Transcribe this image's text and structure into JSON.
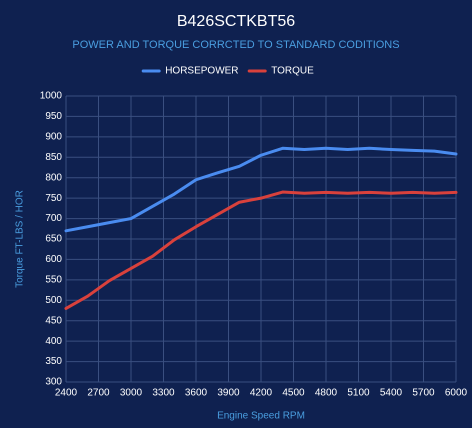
{
  "chart_data": {
    "type": "line",
    "title": "B426SCTKBT56",
    "subtitle": "POWER AND TORQUE CORRCTED TO STANDARD CODITIONS",
    "x_label": "Engine Speed RPM",
    "y_label": "Torque FT-LBS / HOR",
    "x": [
      2400,
      2600,
      2800,
      3000,
      3200,
      3400,
      3600,
      3800,
      4000,
      4200,
      4400,
      4600,
      4800,
      5000,
      5200,
      5400,
      5600,
      5800,
      6000
    ],
    "series": [
      {
        "name": "HORSEPOWER",
        "color": "#4a8cf0",
        "values": [
          670,
          680,
          690,
          700,
          730,
          760,
          795,
          812,
          828,
          855,
          872,
          869,
          872,
          869,
          872,
          869,
          867,
          865,
          858
        ]
      },
      {
        "name": "TORQUE",
        "color": "#d9413c",
        "values": [
          480,
          510,
          548,
          578,
          608,
          648,
          680,
          710,
          740,
          750,
          765,
          762,
          764,
          762,
          764,
          762,
          764,
          762,
          764
        ]
      }
    ],
    "xlim": [
      2400,
      6000
    ],
    "xticks": [
      2400,
      2700,
      3000,
      3300,
      3600,
      3900,
      4200,
      4500,
      4800,
      5100,
      5400,
      5700,
      6000
    ],
    "ylim": [
      300,
      1000
    ],
    "yticks": [
      300,
      350,
      400,
      450,
      500,
      550,
      600,
      650,
      700,
      750,
      800,
      850,
      900,
      950,
      1000
    ],
    "grid": true,
    "legend": "top"
  }
}
